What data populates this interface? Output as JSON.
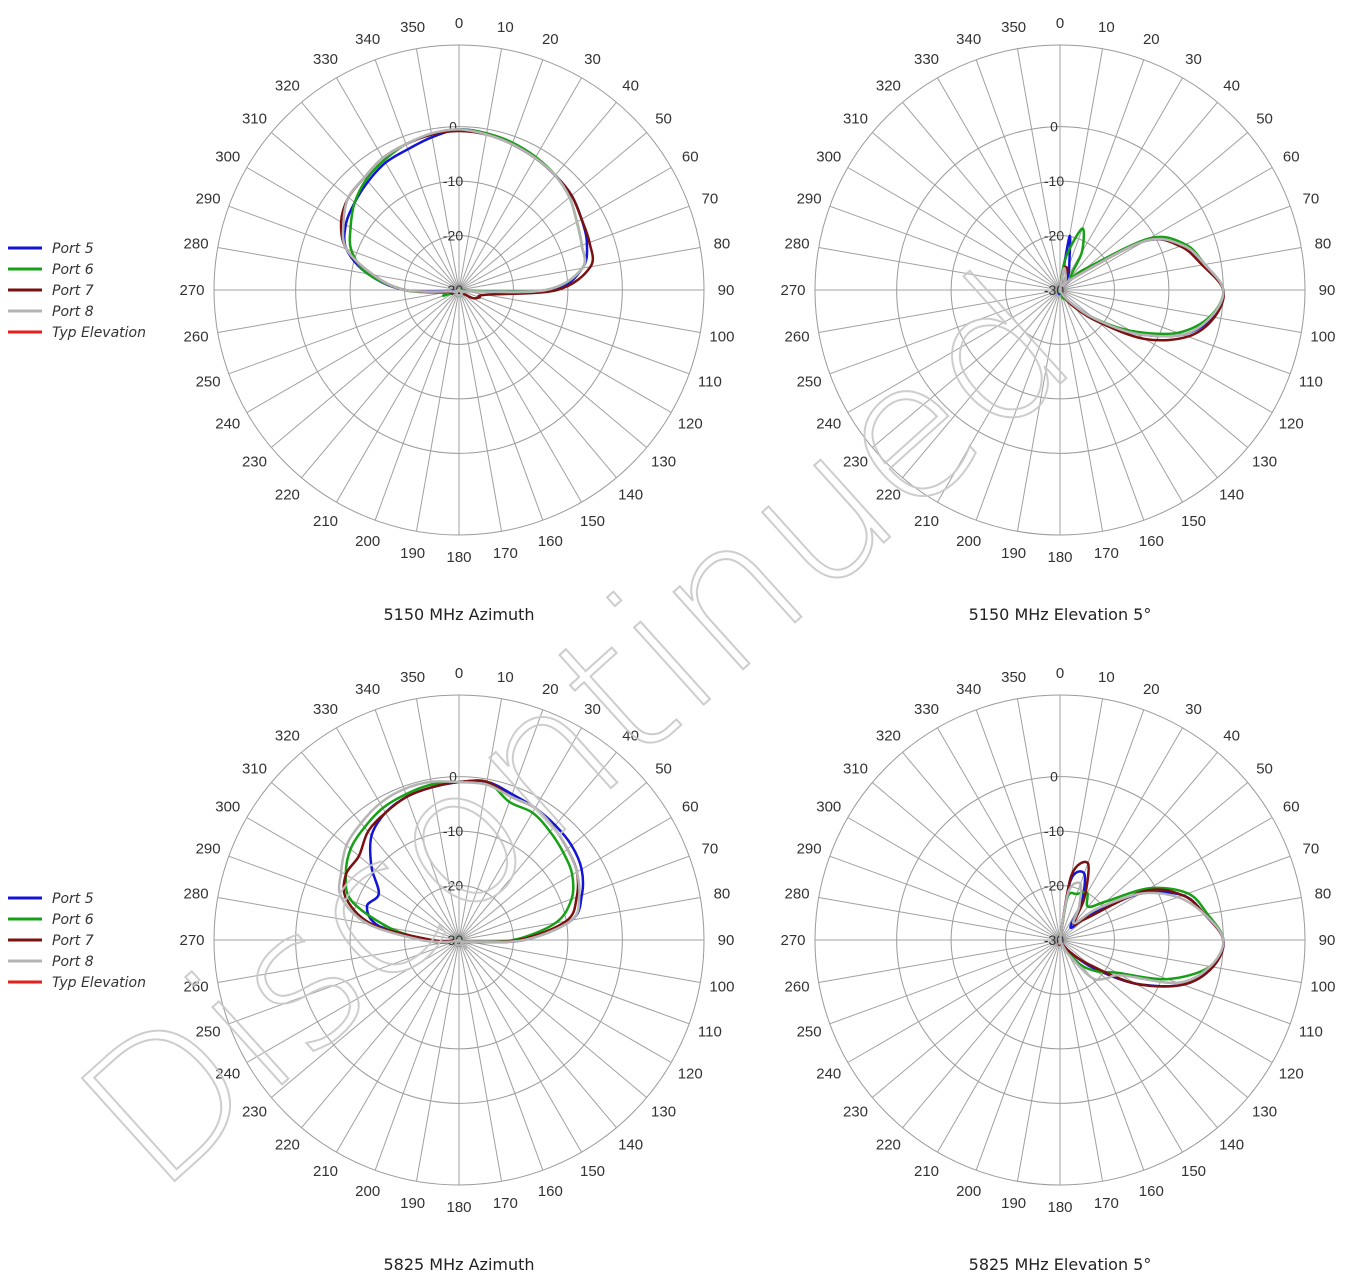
{
  "watermark": "Discontinued",
  "legend_items": [
    {
      "name": "Port 5",
      "color": "#1414d8"
    },
    {
      "name": "Port 6",
      "color": "#16a016"
    },
    {
      "name": "Port 7",
      "color": "#7a1010"
    },
    {
      "name": "Port 8",
      "color": "#b4b4b4"
    },
    {
      "name": "Typ Elevation",
      "color": "#e61e1e"
    }
  ],
  "chart_data": [
    {
      "type": "polar",
      "title": "5150 MHz Azimuth",
      "angle_ticks": [
        0,
        10,
        20,
        30,
        40,
        50,
        60,
        70,
        80,
        90,
        100,
        110,
        120,
        130,
        140,
        150,
        160,
        170,
        180,
        190,
        200,
        210,
        220,
        230,
        240,
        250,
        260,
        270,
        280,
        290,
        300,
        310,
        320,
        330,
        340,
        350
      ],
      "radial_ticks": [
        0,
        -10,
        -20,
        -30
      ],
      "rlim": [
        -30,
        0
      ],
      "angle_direction": "clockwise",
      "angle_zero": "top",
      "series": [
        {
          "name": "Port 5",
          "color": "#1414d8",
          "r": [
            -0.5,
            -0.8,
            -1.5,
            -2,
            -2.5,
            -3,
            -4,
            -5,
            -7,
            -13,
            -29,
            -29.5,
            -30,
            -30,
            -29.5,
            -29,
            -29,
            -29,
            -29,
            -29,
            -29,
            -29,
            -29.5,
            -30,
            -30,
            -29,
            -29,
            -20,
            -13,
            -8,
            -6,
            -5,
            -4,
            -3,
            -2.5,
            -1.5
          ]
        },
        {
          "name": "Port 6",
          "color": "#16a016",
          "r": [
            -0.5,
            -0.8,
            -1.2,
            -1.8,
            -2.5,
            -3.5,
            -5,
            -6,
            -7,
            -14,
            -29,
            -29.5,
            -30,
            -30,
            -29.5,
            -29,
            -29,
            -29,
            -29,
            -29,
            -29,
            -29,
            -29.5,
            -30,
            -30,
            -27,
            -27,
            -20,
            -13,
            -9,
            -7,
            -5,
            -3.5,
            -2.5,
            -1.5,
            -1
          ]
        },
        {
          "name": "Port 7",
          "color": "#7a1010",
          "r": [
            -0.8,
            -1,
            -1.5,
            -2,
            -2.5,
            -3,
            -4,
            -4.5,
            -5.5,
            -12,
            -25,
            -26,
            -27,
            -29,
            -29.5,
            -29.5,
            -29.5,
            -29.5,
            -29.5,
            -29.5,
            -29.5,
            -29.5,
            -29.5,
            -30,
            -29.5,
            -28.5,
            -28,
            -20,
            -14,
            -8,
            -5,
            -3.5,
            -3,
            -2,
            -1.5,
            -1
          ]
        },
        {
          "name": "Port 8",
          "color": "#b4b4b4",
          "r": [
            -0.5,
            -1,
            -1.5,
            -2,
            -2.5,
            -3.5,
            -5,
            -6,
            -7,
            -14,
            -28.5,
            -29,
            -30,
            -30,
            -29.5,
            -29,
            -29,
            -29,
            -29,
            -29,
            -29,
            -29,
            -29.5,
            -30,
            -30,
            -29,
            -28.5,
            -20,
            -14,
            -8,
            -5.5,
            -3.5,
            -3,
            -2,
            -1.5,
            -0.8
          ]
        }
      ]
    },
    {
      "type": "polar",
      "title": "5150 MHz Elevation 5°",
      "angle_ticks": [
        0,
        10,
        20,
        30,
        40,
        50,
        60,
        70,
        80,
        90,
        100,
        110,
        120,
        130,
        140,
        150,
        160,
        170,
        180,
        190,
        200,
        210,
        220,
        230,
        240,
        250,
        260,
        270,
        280,
        290,
        300,
        310,
        320,
        330,
        340,
        350
      ],
      "radial_ticks": [
        0,
        -10,
        -20,
        -30
      ],
      "rlim": [
        -30,
        0
      ],
      "angle_direction": "clockwise",
      "angle_zero": "top",
      "series": [
        {
          "name": "Port 5",
          "color": "#1414d8",
          "r": [
            -30,
            -20,
            -25,
            -27,
            -29,
            -25,
            -12,
            -6,
            -3,
            0,
            -1.5,
            -6,
            -14,
            -22,
            -27,
            -29,
            -30,
            -30,
            -30,
            -30,
            -30,
            -30,
            -30,
            -30,
            -30,
            -30,
            -30,
            -30,
            -30,
            -30,
            -30,
            -30,
            -30,
            -30,
            -30,
            -30
          ]
        },
        {
          "name": "Port 6",
          "color": "#16a016",
          "r": [
            -30,
            -24,
            -18,
            -22,
            -27,
            -24,
            -11,
            -5.5,
            -3,
            0,
            -2,
            -7,
            -15,
            -22,
            -26,
            -28,
            -28.5,
            -30,
            -30,
            -30,
            -30,
            -30,
            -30,
            -30,
            -30,
            -30,
            -30,
            -30,
            -30,
            -30,
            -30,
            -30,
            -30,
            -30,
            -30,
            -30
          ]
        },
        {
          "name": "Port 7",
          "color": "#7a1010",
          "r": [
            -30,
            -26,
            -26,
            -28,
            -29,
            -26,
            -12,
            -6.5,
            -3.5,
            0,
            -1.2,
            -5,
            -12,
            -21,
            -26,
            -29,
            -30,
            -30,
            -30,
            -30,
            -30,
            -30,
            -30,
            -30,
            -30,
            -30,
            -30,
            -30,
            -30,
            -30,
            -30,
            -30,
            -30,
            -30,
            -30,
            -30
          ]
        },
        {
          "name": "Port 8",
          "color": "#b4b4b4",
          "r": [
            -30,
            -26,
            -27,
            -28,
            -29,
            -26,
            -12,
            -6,
            -3,
            0,
            -1.8,
            -6,
            -14,
            -22,
            -27,
            -29,
            -30,
            -30,
            -30,
            -30,
            -30,
            -30,
            -30,
            -30,
            -30,
            -30,
            -30,
            -30,
            -30,
            -30,
            -30,
            -30,
            -30,
            -30,
            -30,
            -30
          ]
        }
      ]
    },
    {
      "type": "polar",
      "title": "5825 MHz Azimuth",
      "angle_ticks": [
        0,
        10,
        20,
        30,
        40,
        50,
        60,
        70,
        80,
        90,
        100,
        110,
        120,
        130,
        140,
        150,
        160,
        170,
        180,
        190,
        200,
        210,
        220,
        230,
        240,
        250,
        260,
        270,
        280,
        290,
        300,
        310,
        320,
        330,
        340,
        350
      ],
      "radial_ticks": [
        0,
        -10,
        -20,
        -30
      ],
      "rlim": [
        -30,
        0
      ],
      "angle_direction": "clockwise",
      "angle_zero": "top",
      "series": [
        {
          "name": "Port 5",
          "color": "#1414d8",
          "r": [
            -1,
            -0.5,
            -1.5,
            -2,
            -2.5,
            -3,
            -4,
            -6,
            -9,
            -18,
            -28,
            -29,
            -29.5,
            -30,
            -30,
            -29.5,
            -29,
            -29,
            -29,
            -29,
            -29,
            -29,
            -29,
            -29.5,
            -30,
            -30,
            -29,
            -24,
            -15,
            -12,
            -13,
            -9,
            -5,
            -3,
            -2,
            -1.5
          ]
        },
        {
          "name": "Port 6",
          "color": "#16a016",
          "r": [
            -1,
            -0.5,
            -3,
            -3,
            -4,
            -5,
            -6,
            -8,
            -12,
            -20,
            -28,
            -29,
            -29.5,
            -30,
            -30,
            -29.5,
            -29,
            -29,
            -29,
            -29,
            -29,
            -29,
            -29,
            -29.5,
            -30,
            -30,
            -27,
            -24,
            -17,
            -9,
            -6,
            -4,
            -3,
            -2,
            -1.5,
            -1
          ]
        },
        {
          "name": "Port 7",
          "color": "#7a1010",
          "r": [
            -1,
            -0.5,
            -2,
            -2,
            -3,
            -4,
            -5,
            -7,
            -10,
            -19,
            -28,
            -29,
            -29.5,
            -30,
            -30,
            -29.5,
            -29,
            -29,
            -29,
            -29,
            -29,
            -29,
            -29,
            -29.5,
            -30,
            -30,
            -29,
            -25,
            -14,
            -8,
            -6,
            -6,
            -4,
            -3,
            -2,
            -1.5
          ]
        },
        {
          "name": "Port 8",
          "color": "#b4b4b4",
          "r": [
            -1,
            -1,
            -2,
            -2,
            -3,
            -4,
            -5,
            -6.5,
            -9,
            -18,
            -28,
            -29,
            -29.5,
            -30,
            -28,
            -29,
            -29,
            -29,
            -29,
            -29,
            -29,
            -29,
            -29,
            -29.5,
            -30,
            -30,
            -28,
            -23,
            -13,
            -7,
            -5,
            -3,
            -2,
            -1,
            -0.5,
            -0.5
          ]
        }
      ]
    },
    {
      "type": "polar",
      "title": "5825 MHz Elevation 5°",
      "angle_ticks": [
        0,
        10,
        20,
        30,
        40,
        50,
        60,
        70,
        80,
        90,
        100,
        110,
        120,
        130,
        140,
        150,
        160,
        170,
        180,
        190,
        200,
        210,
        220,
        230,
        240,
        250,
        260,
        270,
        280,
        290,
        300,
        310,
        320,
        330,
        340,
        350
      ],
      "radial_ticks": [
        0,
        -10,
        -20,
        -30
      ],
      "rlim": [
        -30,
        0
      ],
      "angle_direction": "clockwise",
      "angle_zero": "top",
      "series": [
        {
          "name": "Port 5",
          "color": "#1414d8",
          "r": [
            -30,
            -19,
            -17,
            -22,
            -27,
            -23,
            -13,
            -6,
            -3,
            0,
            -1.5,
            -6,
            -14,
            -22,
            -27,
            -29,
            -30,
            -30,
            -30,
            -30,
            -30,
            -30,
            -30,
            -30,
            -30,
            -30,
            -30,
            -30,
            -30,
            -30,
            -30,
            -30,
            -30,
            -30,
            -30,
            -30
          ]
        },
        {
          "name": "Port 6",
          "color": "#16a016",
          "r": [
            -30,
            -22,
            -21,
            -20,
            -22,
            -19,
            -11,
            -5,
            -2.5,
            0,
            -2,
            -9,
            -18,
            -21,
            -24,
            -28,
            -30,
            -30,
            -30,
            -30,
            -30,
            -30,
            -30,
            -30,
            -30,
            -30,
            -30,
            -30,
            -30,
            -30,
            -30,
            -30,
            -30,
            -30,
            -30,
            -30
          ]
        },
        {
          "name": "Port 7",
          "color": "#7a1010",
          "r": [
            -30,
            -18,
            -15,
            -21,
            -26,
            -24,
            -12,
            -6,
            -3,
            0,
            -1.5,
            -6,
            -14,
            -23,
            -27,
            -29,
            -30,
            -30,
            -30,
            -30,
            -30,
            -30,
            -30,
            -30,
            -30,
            -30,
            -30,
            -30,
            -30,
            -30,
            -30,
            -30,
            -30,
            -30,
            -30,
            -30
          ]
        },
        {
          "name": "Port 8",
          "color": "#b4b4b4",
          "r": [
            -30,
            -21,
            -19,
            -23,
            -26,
            -21,
            -13,
            -7,
            -3,
            0,
            -2,
            -7,
            -17,
            -19,
            -21,
            -27,
            -30,
            -30,
            -30,
            -30,
            -30,
            -30,
            -30,
            -30,
            -30,
            -30,
            -30,
            -30,
            -30,
            -30,
            -30,
            -30,
            -30,
            -30,
            -30,
            -30
          ]
        }
      ]
    }
  ]
}
